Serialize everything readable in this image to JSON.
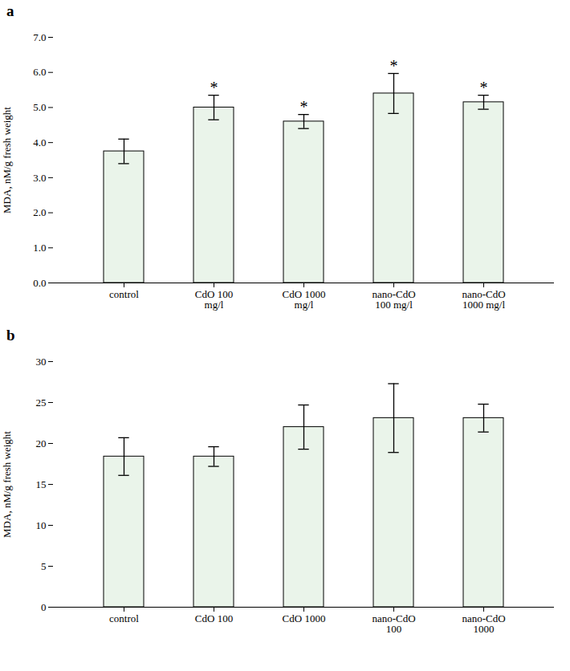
{
  "chart_data": [
    {
      "type": "bar",
      "title": "a",
      "categories": [
        "control",
        "CdO 100\nmg/l",
        "CdO 1000\nmg/l",
        "nano-CdO\n100 mg/l",
        "nano-CdO\n1000 mg/l"
      ],
      "values": [
        3.75,
        5.0,
        4.6,
        5.4,
        5.15
      ],
      "errors": [
        0.35,
        0.35,
        0.2,
        0.57,
        0.2
      ],
      "annotations": [
        {
          "x": "CdO 100\nmg/l",
          "text": "*"
        },
        {
          "x": "CdO 1000\nmg/l",
          "text": "*"
        },
        {
          "x": "nano-CdO\n100 mg/l",
          "text": "*"
        },
        {
          "x": "nano-CdO\n1000 mg/l",
          "text": "*"
        }
      ],
      "y_label": "MDA, nM/g fresh weight",
      "color": "#eaf4ea",
      "ylim": [
        0,
        7
      ],
      "yticks": [
        0,
        1,
        2,
        3,
        4,
        5,
        6,
        7
      ],
      "grid": false
    },
    {
      "type": "bar",
      "title": "b",
      "categories": [
        "control",
        "CdO 100",
        "CdO 1000",
        "nano-CdO\n100",
        "nano-CdO\n1000"
      ],
      "values": [
        18.4,
        18.4,
        22.0,
        23.1,
        23.1
      ],
      "errors": [
        2.3,
        1.2,
        2.7,
        4.2,
        1.7
      ],
      "y_label": "MDA, nM/g fresh weight",
      "color": "#eaf4ea",
      "ylim": [
        0,
        30
      ],
      "yticks": [
        0,
        5,
        10,
        15,
        20,
        25,
        30
      ],
      "grid": false
    }
  ]
}
